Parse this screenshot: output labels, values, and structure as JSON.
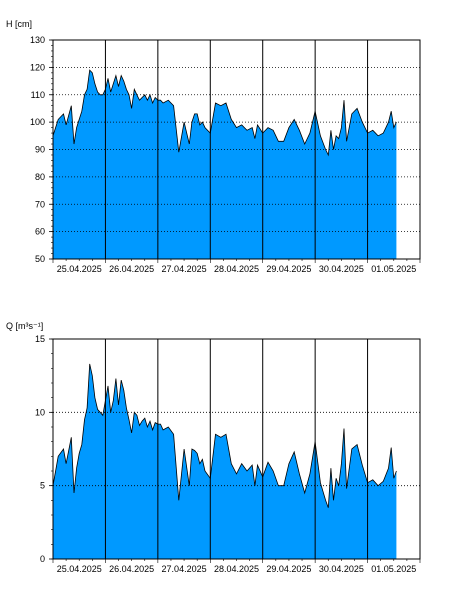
{
  "chart_data": [
    {
      "type": "area",
      "ylabel": "H [cm]",
      "ylim": [
        50,
        130
      ],
      "yticks": [
        50,
        60,
        70,
        80,
        90,
        100,
        110,
        120,
        130
      ],
      "grid": "dotted-horizontal, solid-vertical-at-day-boundaries",
      "fill_color": "#0099ff",
      "line_color": "#000000",
      "xlim": [
        0,
        7
      ],
      "x_tick_labels": [
        "25.04.2025",
        "26.04.2025",
        "27.04.2025",
        "28.04.2025",
        "29.04.2025",
        "30.04.2025",
        "01.05.2025"
      ],
      "x": [
        0.0,
        0.1,
        0.2,
        0.25,
        0.35,
        0.4,
        0.45,
        0.5,
        0.55,
        0.6,
        0.65,
        0.7,
        0.75,
        0.8,
        0.85,
        0.9,
        0.95,
        1.0,
        1.05,
        1.1,
        1.15,
        1.2,
        1.25,
        1.3,
        1.35,
        1.4,
        1.45,
        1.5,
        1.55,
        1.6,
        1.65,
        1.7,
        1.75,
        1.8,
        1.85,
        1.9,
        1.95,
        2.0,
        2.05,
        2.1,
        2.2,
        2.3,
        2.4,
        2.5,
        2.6,
        2.65,
        2.7,
        2.75,
        2.8,
        2.85,
        2.9,
        3.0,
        3.1,
        3.2,
        3.3,
        3.4,
        3.5,
        3.6,
        3.7,
        3.8,
        3.85,
        3.9,
        4.0,
        4.1,
        4.2,
        4.3,
        4.4,
        4.5,
        4.6,
        4.7,
        4.8,
        4.9,
        5.0,
        5.1,
        5.2,
        5.25,
        5.3,
        5.35,
        5.4,
        5.45,
        5.5,
        5.55,
        5.6,
        5.7,
        5.8,
        5.9,
        6.0,
        6.1,
        6.2,
        6.3,
        6.4,
        6.45,
        6.5,
        6.55
      ],
      "y": [
        95,
        101,
        103,
        99,
        106,
        92,
        98,
        101,
        104,
        110,
        112,
        119,
        118,
        114,
        111,
        110,
        110,
        112,
        116,
        111,
        114,
        117,
        113,
        117,
        115,
        112,
        110,
        105,
        112,
        110,
        108,
        109,
        110,
        108,
        110,
        107,
        109,
        108,
        108,
        107,
        108,
        106,
        89,
        100,
        92,
        100,
        103,
        103,
        99,
        100,
        98,
        96,
        107,
        106,
        107,
        101,
        98,
        99,
        97,
        98,
        94,
        99,
        96,
        98,
        97,
        93,
        93,
        98,
        101,
        97,
        92,
        96,
        104,
        95,
        90,
        88,
        97,
        90,
        95,
        94,
        98,
        108,
        93,
        103,
        105,
        100,
        96,
        97,
        95,
        96,
        100,
        104,
        98,
        100
      ]
    },
    {
      "type": "area",
      "ylabel": "Q [m³s⁻¹]",
      "ylim": [
        0,
        15
      ],
      "yticks": [
        0,
        5,
        10,
        15
      ],
      "grid": "dotted-horizontal, solid-vertical-at-day-boundaries",
      "fill_color": "#0099ff",
      "line_color": "#000000",
      "xlim": [
        0,
        7
      ],
      "x_tick_labels": [
        "25.04.2025",
        "26.04.2025",
        "27.04.2025",
        "28.04.2025",
        "29.04.2025",
        "30.04.2025",
        "01.05.2025"
      ],
      "x": [
        0.0,
        0.1,
        0.2,
        0.25,
        0.35,
        0.4,
        0.45,
        0.5,
        0.55,
        0.6,
        0.65,
        0.7,
        0.75,
        0.8,
        0.85,
        0.9,
        0.95,
        1.0,
        1.05,
        1.1,
        1.15,
        1.2,
        1.25,
        1.3,
        1.35,
        1.4,
        1.45,
        1.5,
        1.55,
        1.6,
        1.65,
        1.7,
        1.75,
        1.8,
        1.85,
        1.9,
        1.95,
        2.0,
        2.05,
        2.1,
        2.2,
        2.3,
        2.4,
        2.5,
        2.6,
        2.65,
        2.7,
        2.75,
        2.8,
        2.85,
        2.9,
        3.0,
        3.1,
        3.2,
        3.3,
        3.4,
        3.5,
        3.6,
        3.7,
        3.8,
        3.85,
        3.9,
        4.0,
        4.1,
        4.2,
        4.3,
        4.4,
        4.5,
        4.6,
        4.7,
        4.8,
        4.9,
        5.0,
        5.1,
        5.2,
        5.25,
        5.3,
        5.35,
        5.4,
        5.45,
        5.5,
        5.55,
        5.6,
        5.7,
        5.8,
        5.9,
        6.0,
        6.1,
        6.2,
        6.3,
        6.4,
        6.45,
        6.5,
        6.55
      ],
      "y": [
        5.0,
        7.0,
        7.5,
        6.5,
        8.3,
        4.5,
        6.2,
        7.2,
        7.8,
        9.5,
        10.3,
        13.3,
        12.5,
        11.0,
        10.2,
        10.0,
        9.8,
        10.8,
        11.8,
        10.0,
        10.8,
        12.3,
        10.5,
        12.2,
        11.5,
        10.3,
        9.5,
        8.6,
        10.0,
        9.8,
        9.1,
        9.4,
        9.6,
        9.0,
        9.4,
        8.8,
        9.3,
        9.2,
        9.2,
        8.8,
        9.0,
        8.5,
        4.0,
        7.5,
        5.0,
        7.5,
        7.4,
        7.2,
        6.5,
        6.8,
        6.0,
        5.5,
        8.5,
        8.3,
        8.5,
        6.5,
        5.8,
        6.5,
        6.0,
        6.4,
        5.0,
        6.4,
        5.6,
        6.6,
        6.0,
        5.0,
        5.0,
        6.5,
        7.3,
        5.8,
        4.5,
        5.8,
        8.0,
        5.2,
        4.0,
        3.5,
        6.2,
        4.0,
        5.5,
        5.0,
        6.5,
        8.9,
        4.8,
        7.5,
        7.8,
        6.4,
        5.2,
        5.4,
        5.0,
        5.3,
        6.2,
        7.6,
        5.5,
        6.0
      ]
    }
  ]
}
